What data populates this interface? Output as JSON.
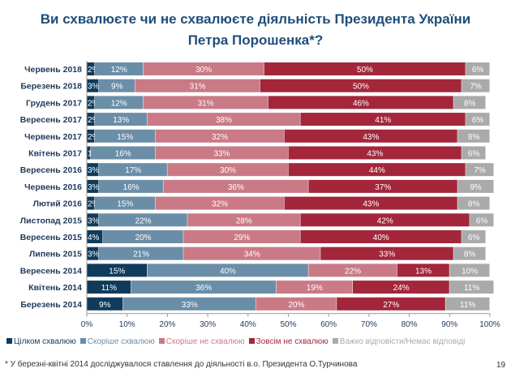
{
  "title_line1": "Ви схвалюєте чи не схвалюєте діяльність Президента України",
  "title_line2": "Петра Порошенка*?",
  "footnote": "* У березні-квітні 2014 досліджувалося ставлення до діяльності в.о. Президента О.Турчинова",
  "page_number": "19",
  "chart_data": {
    "type": "bar",
    "orientation": "horizontal",
    "stacked": true,
    "categories": [
      "Червень 2018",
      "Березень 2018",
      "Грудень 2017",
      "Вересень 2017",
      "Червень 2017",
      "Квітень 2017",
      "Вересень 2016",
      "Червень 2016",
      "Лютий 2016",
      "Листопад 2015",
      "Вересень 2015",
      "Липень 2015",
      "Вересень 2014",
      "Квітень 2014",
      "Березень 2014"
    ],
    "series": [
      {
        "name": "Цілком схвалюю",
        "color": "#0f3b5c",
        "values": [
          2,
          3,
          2,
          2,
          2,
          1,
          3,
          3,
          2,
          3,
          4,
          3,
          15,
          11,
          9
        ]
      },
      {
        "name": "Скоріше схвалюю",
        "color": "#6b8ea8",
        "values": [
          12,
          9,
          12,
          13,
          15,
          16,
          17,
          16,
          15,
          22,
          20,
          21,
          40,
          36,
          33
        ]
      },
      {
        "name": "Скоріше не схвалюю",
        "color": "#c97a86",
        "values": [
          30,
          31,
          31,
          38,
          32,
          33,
          30,
          36,
          32,
          28,
          29,
          34,
          22,
          19,
          20
        ]
      },
      {
        "name": "Зовсім не схвалюю",
        "color": "#a3263a",
        "values": [
          50,
          50,
          46,
          41,
          43,
          43,
          44,
          37,
          43,
          42,
          40,
          33,
          13,
          24,
          27
        ]
      },
      {
        "name": "Важко відповісти/Немає відповіді",
        "color": "#aaaaaa",
        "values": [
          6,
          7,
          8,
          6,
          8,
          6,
          7,
          9,
          8,
          6,
          6,
          8,
          10,
          11,
          11
        ]
      }
    ],
    "xlim": [
      0,
      100
    ],
    "xticks": [
      "0%",
      "10%",
      "20%",
      "30%",
      "40%",
      "50%",
      "60%",
      "70%",
      "80%",
      "90%",
      "100%"
    ],
    "legend_position": "bottom",
    "label_suffix": "%"
  }
}
